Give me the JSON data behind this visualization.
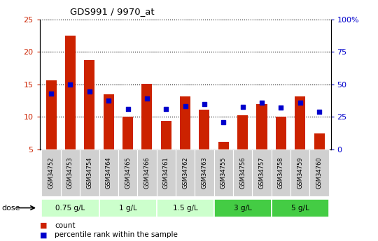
{
  "title": "GDS991 / 9970_at",
  "samples": [
    "GSM34752",
    "GSM34753",
    "GSM34754",
    "GSM34764",
    "GSM34765",
    "GSM34766",
    "GSM34761",
    "GSM34762",
    "GSM34763",
    "GSM34755",
    "GSM34756",
    "GSM34757",
    "GSM34758",
    "GSM34759",
    "GSM34760"
  ],
  "bar_values": [
    15.6,
    22.5,
    18.7,
    13.5,
    10.0,
    15.1,
    9.4,
    13.2,
    11.1,
    6.2,
    10.2,
    12.0,
    10.0,
    13.1,
    7.5
  ],
  "dot_left_axis_vals": [
    13.6,
    15.0,
    13.9,
    12.5,
    11.2,
    12.8,
    11.2,
    11.6,
    12.0,
    9.2,
    11.5,
    12.2,
    11.4,
    12.2,
    10.8
  ],
  "bar_color": "#cc2200",
  "dot_color": "#0000cc",
  "ylim_left": [
    5,
    25
  ],
  "ylim_right": [
    0,
    100
  ],
  "yticks_left": [
    5,
    10,
    15,
    20,
    25
  ],
  "yticks_right": [
    0,
    25,
    50,
    75,
    100
  ],
  "ytick_labels_right": [
    "0",
    "25",
    "50",
    "75",
    "100%"
  ],
  "dose_groups": [
    {
      "label": "0.75 g/L",
      "samples": [
        "GSM34752",
        "GSM34753",
        "GSM34754"
      ],
      "color": "#ccffcc"
    },
    {
      "label": "1 g/L",
      "samples": [
        "GSM34764",
        "GSM34765",
        "GSM34766"
      ],
      "color": "#ccffcc"
    },
    {
      "label": "1.5 g/L",
      "samples": [
        "GSM34761",
        "GSM34762",
        "GSM34763"
      ],
      "color": "#ccffcc"
    },
    {
      "label": "3 g/L",
      "samples": [
        "GSM34755",
        "GSM34756",
        "GSM34757"
      ],
      "color": "#44cc44"
    },
    {
      "label": "5 g/L",
      "samples": [
        "GSM34758",
        "GSM34759",
        "GSM34760"
      ],
      "color": "#44cc44"
    }
  ],
  "bar_width": 0.55,
  "legend_count": "count",
  "legend_percentile": "percentile rank within the sample"
}
